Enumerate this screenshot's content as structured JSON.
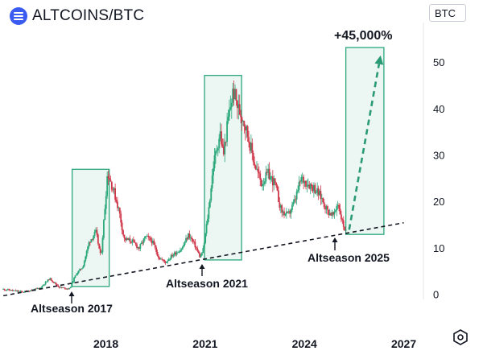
{
  "header": {
    "title": "ALTCOINS/BTC",
    "unit": "BTC"
  },
  "colors": {
    "up": "#2aa87a",
    "down": "#d0374a",
    "box_stroke": "#2aa87a",
    "box_fill": "#e9f5f1",
    "trend": "#131722",
    "arrow": "#2a9a75"
  },
  "chart_data": {
    "type": "candlestick",
    "title": "ALTCOINS/BTC",
    "ylabel": "BTC",
    "y_ticks": [
      0,
      10,
      20,
      30,
      40,
      50
    ],
    "ylim": [
      -1,
      61
    ],
    "x_ticks": [
      "2018",
      "2021",
      "2024",
      "2027"
    ],
    "xlim": [
      2014.8,
      2027.4
    ],
    "grid": false,
    "price_path": [
      [
        2014.9,
        1.2
      ],
      [
        2015.5,
        0.6
      ],
      [
        2016.0,
        1.4
      ],
      [
        2016.3,
        3.5
      ],
      [
        2016.6,
        1.6
      ],
      [
        2016.9,
        1.3
      ],
      [
        2017.1,
        4.5
      ],
      [
        2017.3,
        6.0
      ],
      [
        2017.5,
        11.5
      ],
      [
        2017.7,
        13.5
      ],
      [
        2017.85,
        8.0
      ],
      [
        2017.95,
        17.0
      ],
      [
        2018.05,
        26.5
      ],
      [
        2018.25,
        22.0
      ],
      [
        2018.4,
        18.0
      ],
      [
        2018.55,
        12.0
      ],
      [
        2018.8,
        11.5
      ],
      [
        2019.0,
        10.0
      ],
      [
        2019.2,
        12.5
      ],
      [
        2019.4,
        11.5
      ],
      [
        2019.6,
        8.0
      ],
      [
        2019.8,
        7.0
      ],
      [
        2020.0,
        8.5
      ],
      [
        2020.3,
        10.0
      ],
      [
        2020.5,
        13.0
      ],
      [
        2020.7,
        10.5
      ],
      [
        2020.85,
        8.0
      ],
      [
        2020.95,
        10.0
      ],
      [
        2021.1,
        18.0
      ],
      [
        2021.25,
        28.0
      ],
      [
        2021.45,
        35.0
      ],
      [
        2021.55,
        30.0
      ],
      [
        2021.7,
        38.0
      ],
      [
        2021.85,
        44.0
      ],
      [
        2022.0,
        40.0
      ],
      [
        2022.15,
        38.0
      ],
      [
        2022.3,
        34.0
      ],
      [
        2022.5,
        28.0
      ],
      [
        2022.7,
        24.0
      ],
      [
        2022.9,
        26.0
      ],
      [
        2023.1,
        24.0
      ],
      [
        2023.3,
        18.0
      ],
      [
        2023.5,
        17.0
      ],
      [
        2023.7,
        20.0
      ],
      [
        2023.9,
        25.0
      ],
      [
        2024.1,
        24.0
      ],
      [
        2024.3,
        23.0
      ],
      [
        2024.5,
        21.0
      ],
      [
        2024.7,
        18.0
      ],
      [
        2024.9,
        17.0
      ],
      [
        2025.0,
        20.0
      ],
      [
        2025.15,
        15.5
      ],
      [
        2025.25,
        13.5
      ]
    ],
    "trendline": {
      "x": [
        2014.9,
        2027.0
      ],
      "y": [
        -0.2,
        15.5
      ]
    },
    "highlight_boxes": [
      {
        "x0": 2016.98,
        "x1": 2018.1,
        "y0": 1.8,
        "y1": 27.0,
        "label": "Altseason 2017"
      },
      {
        "x0": 2020.98,
        "x1": 2022.1,
        "y0": 7.5,
        "y1": 47.2,
        "label": "Altseason 2021"
      },
      {
        "x0": 2025.25,
        "x1": 2026.4,
        "y0": 13.0,
        "y1": 53.2,
        "label": "Altseason 2025"
      }
    ],
    "projection": {
      "from": [
        2025.35,
        14.0
      ],
      "to": [
        2026.3,
        51.5
      ],
      "label": "+45,000%"
    }
  }
}
